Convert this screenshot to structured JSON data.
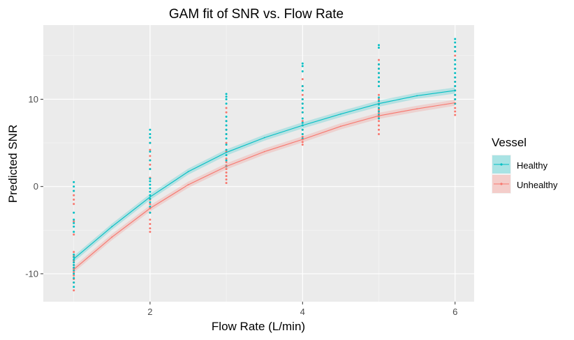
{
  "chart_data": {
    "type": "scatter",
    "title": "GAM fit of SNR vs. Flow Rate",
    "xlabel": "Flow Rate (L/min)",
    "ylabel": "Predicted SNR",
    "xlim": [
      0.6,
      6.25
    ],
    "ylim": [
      -13.2,
      18.5
    ],
    "x_ticks": [
      2,
      4,
      6
    ],
    "x_tick_labels": [
      "2",
      "4",
      "6"
    ],
    "y_ticks": [
      -10,
      0,
      10
    ],
    "y_tick_labels": [
      "-10",
      "0",
      "10"
    ],
    "grid": true,
    "legend": {
      "title": "Vessel",
      "position": "right"
    },
    "series": [
      {
        "name": "Healthy",
        "color": "#00BFC4",
        "fit_x": [
          1,
          1.5,
          2,
          2.5,
          3,
          3.5,
          4,
          4.5,
          5,
          5.5,
          6
        ],
        "fit_y": [
          -8.3,
          -4.6,
          -1.2,
          1.7,
          3.9,
          5.6,
          7.0,
          8.3,
          9.5,
          10.4,
          11.0
        ],
        "points": [
          [
            1,
            -11.5
          ],
          [
            1,
            -11.0
          ],
          [
            1,
            -10.5
          ],
          [
            1,
            -10.0
          ],
          [
            1,
            -9.6
          ],
          [
            1,
            -9.3
          ],
          [
            1,
            -9.0
          ],
          [
            1,
            -8.7
          ],
          [
            1,
            -8.4
          ],
          [
            1,
            -8.1
          ],
          [
            1,
            -7.8
          ],
          [
            1,
            -5.2
          ],
          [
            1,
            -4.6
          ],
          [
            1,
            -4.2
          ],
          [
            1,
            -3.8
          ],
          [
            1,
            -3.0
          ],
          [
            1,
            -0.5
          ],
          [
            1,
            0.0
          ],
          [
            1,
            0.5
          ],
          [
            2,
            -3.0
          ],
          [
            2,
            -2.3
          ],
          [
            2,
            -1.8
          ],
          [
            2,
            -1.4
          ],
          [
            2,
            -1.0
          ],
          [
            2,
            -0.6
          ],
          [
            2,
            -0.2
          ],
          [
            2,
            0.2
          ],
          [
            2,
            0.6
          ],
          [
            2,
            0.9
          ],
          [
            2,
            2.0
          ],
          [
            2,
            3.0
          ],
          [
            2,
            4.0
          ],
          [
            2,
            5.0
          ],
          [
            2,
            5.6
          ],
          [
            2,
            6.0
          ],
          [
            2,
            6.5
          ],
          [
            3,
            2.3
          ],
          [
            3,
            3.0
          ],
          [
            3,
            3.6
          ],
          [
            3,
            4.2
          ],
          [
            3,
            4.8
          ],
          [
            3,
            5.5
          ],
          [
            3,
            6.0
          ],
          [
            3,
            6.5
          ],
          [
            3,
            7.0
          ],
          [
            3,
            7.5
          ],
          [
            3,
            8.0
          ],
          [
            3,
            9.5
          ],
          [
            3,
            10.0
          ],
          [
            3,
            10.3
          ],
          [
            3,
            10.6
          ],
          [
            4,
            5.5
          ],
          [
            4,
            6.0
          ],
          [
            4,
            6.5
          ],
          [
            4,
            7.0
          ],
          [
            4,
            7.3
          ],
          [
            4,
            7.8
          ],
          [
            4,
            8.5
          ],
          [
            4,
            9.0
          ],
          [
            4,
            9.5
          ],
          [
            4,
            10.0
          ],
          [
            4,
            11.0
          ],
          [
            4,
            11.5
          ],
          [
            4,
            13.2
          ],
          [
            4,
            13.8
          ],
          [
            4,
            14.1
          ],
          [
            5,
            7.8
          ],
          [
            5,
            8.2
          ],
          [
            5,
            8.6
          ],
          [
            5,
            9.0
          ],
          [
            5,
            9.4
          ],
          [
            5,
            9.8
          ],
          [
            5,
            10.2
          ],
          [
            5,
            11.5
          ],
          [
            5,
            12.0
          ],
          [
            5,
            12.5
          ],
          [
            5,
            13.0
          ],
          [
            5,
            13.5
          ],
          [
            5,
            14.0
          ],
          [
            5,
            15.9
          ],
          [
            5,
            16.2
          ],
          [
            6,
            9.5
          ],
          [
            6,
            10.0
          ],
          [
            6,
            10.5
          ],
          [
            6,
            11.0
          ],
          [
            6,
            11.5
          ],
          [
            6,
            12.0
          ],
          [
            6,
            12.5
          ],
          [
            6,
            13.0
          ],
          [
            6,
            13.5
          ],
          [
            6,
            14.0
          ],
          [
            6,
            14.5
          ],
          [
            6,
            15.5
          ],
          [
            6,
            16.0
          ],
          [
            6,
            16.5
          ],
          [
            6,
            16.9
          ]
        ]
      },
      {
        "name": "Unhealthy",
        "color": "#F8766D",
        "fit_x": [
          1,
          1.5,
          2,
          2.5,
          3,
          3.5,
          4,
          4.5,
          5,
          5.5,
          6
        ],
        "fit_y": [
          -9.5,
          -5.8,
          -2.5,
          0.2,
          2.3,
          4.0,
          5.4,
          6.9,
          8.1,
          8.9,
          9.6
        ],
        "points": [
          [
            1,
            -11.9
          ],
          [
            1,
            -11.0
          ],
          [
            1,
            -10.6
          ],
          [
            1,
            -10.2
          ],
          [
            1,
            -9.8
          ],
          [
            1,
            -9.4
          ],
          [
            1,
            -9.0
          ],
          [
            1,
            -8.5
          ],
          [
            1,
            -8.0
          ],
          [
            1,
            -7.5
          ],
          [
            1,
            -5.5
          ],
          [
            1,
            -4.0
          ],
          [
            1,
            -2.0
          ],
          [
            1,
            -1.5
          ],
          [
            1,
            -1.0
          ],
          [
            1,
            -0.5
          ],
          [
            2,
            -5.2
          ],
          [
            2,
            -4.8
          ],
          [
            2,
            -4.3
          ],
          [
            2,
            -3.8
          ],
          [
            2,
            -3.0
          ],
          [
            2,
            -2.5
          ],
          [
            2,
            -2.0
          ],
          [
            2,
            -1.5
          ],
          [
            2,
            1.0
          ],
          [
            2,
            2.0
          ],
          [
            2,
            2.5
          ],
          [
            2,
            3.0
          ],
          [
            2,
            3.5
          ],
          [
            2,
            4.2
          ],
          [
            2,
            5.0
          ],
          [
            3,
            0.4
          ],
          [
            3,
            0.8
          ],
          [
            3,
            1.2
          ],
          [
            3,
            1.6
          ],
          [
            3,
            2.0
          ],
          [
            3,
            2.4
          ],
          [
            3,
            2.8
          ],
          [
            3,
            3.2
          ],
          [
            3,
            4.0
          ],
          [
            3,
            5.0
          ],
          [
            3,
            6.0
          ],
          [
            3,
            6.5
          ],
          [
            3,
            7.5
          ],
          [
            3,
            8.5
          ],
          [
            3,
            9.0
          ],
          [
            4,
            4.8
          ],
          [
            4,
            5.1
          ],
          [
            4,
            5.4
          ],
          [
            4,
            5.7
          ],
          [
            4,
            6.0
          ],
          [
            4,
            6.5
          ],
          [
            4,
            7.0
          ],
          [
            4,
            7.5
          ],
          [
            4,
            8.5
          ],
          [
            4,
            9.5
          ],
          [
            4,
            10.0
          ],
          [
            4,
            10.5
          ],
          [
            4,
            11.5
          ],
          [
            4,
            12.3
          ],
          [
            5,
            6.0
          ],
          [
            5,
            6.5
          ],
          [
            5,
            7.0
          ],
          [
            5,
            7.5
          ],
          [
            5,
            8.0
          ],
          [
            5,
            8.4
          ],
          [
            5,
            8.8
          ],
          [
            5,
            9.5
          ],
          [
            5,
            10.0
          ],
          [
            5,
            10.5
          ],
          [
            5,
            12.0
          ],
          [
            5,
            13.0
          ],
          [
            5,
            13.5
          ],
          [
            5,
            14.0
          ],
          [
            5,
            14.5
          ],
          [
            6,
            8.2
          ],
          [
            6,
            8.6
          ],
          [
            6,
            9.0
          ],
          [
            6,
            9.5
          ],
          [
            6,
            10.0
          ],
          [
            6,
            10.5
          ],
          [
            6,
            11.0
          ],
          [
            6,
            11.5
          ],
          [
            6,
            12.0
          ],
          [
            6,
            12.5
          ],
          [
            6,
            13.5
          ],
          [
            6,
            14.5
          ],
          [
            6,
            15.0
          ],
          [
            6,
            15.5
          ],
          [
            6,
            16.0
          ]
        ]
      }
    ]
  }
}
